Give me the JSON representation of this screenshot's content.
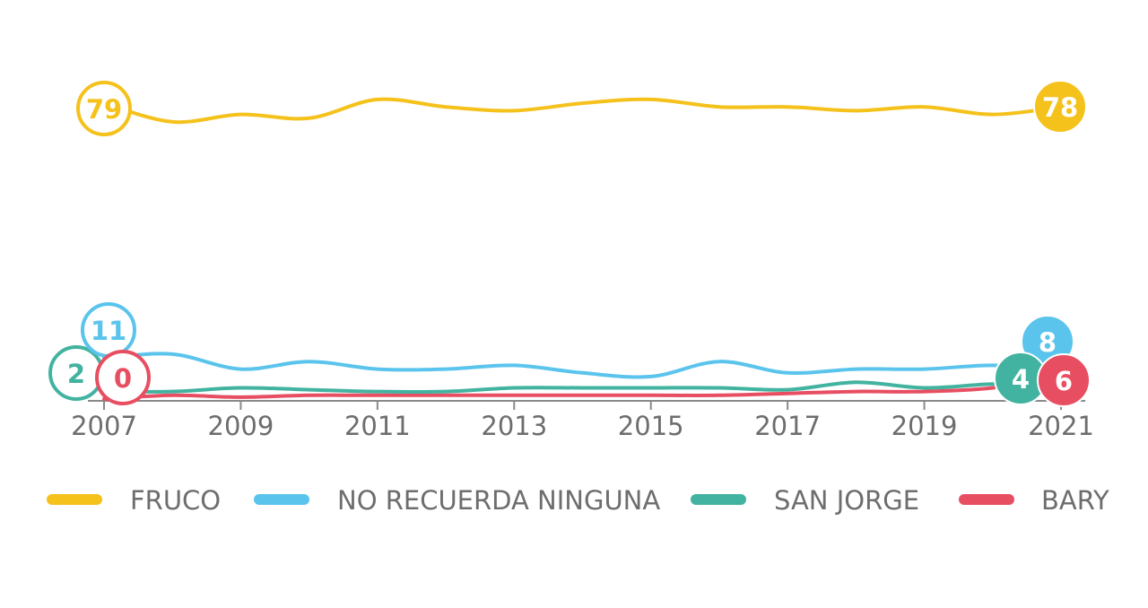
{
  "chart_data": {
    "type": "line",
    "x": [
      2007,
      2008,
      2009,
      2010,
      2011,
      2012,
      2013,
      2014,
      2015,
      2016,
      2017,
      2018,
      2019,
      2020,
      2021
    ],
    "xticks": [
      "2007",
      "2009",
      "2011",
      "2013",
      "2015",
      "2017",
      "2019",
      "2021"
    ],
    "series": [
      {
        "name": "FRUCO",
        "color": "#F5C11B",
        "values": [
          79,
          74,
          76,
          75,
          80,
          78,
          77,
          79,
          80,
          78,
          78,
          77,
          78,
          76,
          78
        ],
        "start_label": "79",
        "end_label": "78"
      },
      {
        "name": "NO RECUERDA NINGUNA",
        "color": "#5BC4EC",
        "values": [
          11,
          12,
          8,
          10,
          8,
          8,
          9,
          7,
          6,
          10,
          7,
          8,
          8,
          9,
          8
        ],
        "start_label": "11",
        "end_label": "8"
      },
      {
        "name": "SAN JORGE",
        "color": "#42B3A0",
        "values": [
          2,
          2,
          3,
          2.5,
          2,
          2,
          3,
          3,
          3,
          3,
          2.5,
          4.5,
          3,
          4,
          4
        ],
        "start_label": "2",
        "end_label": "4"
      },
      {
        "name": "BARY",
        "color": "#E84E62",
        "values": [
          0,
          1,
          0.5,
          1,
          1,
          1,
          1,
          1,
          1,
          1,
          1.5,
          2,
          2,
          3,
          6
        ],
        "start_label": "0",
        "end_label": "6"
      }
    ],
    "ylim": [
      0,
      85
    ],
    "grid": false,
    "legend_position": "bottom"
  }
}
